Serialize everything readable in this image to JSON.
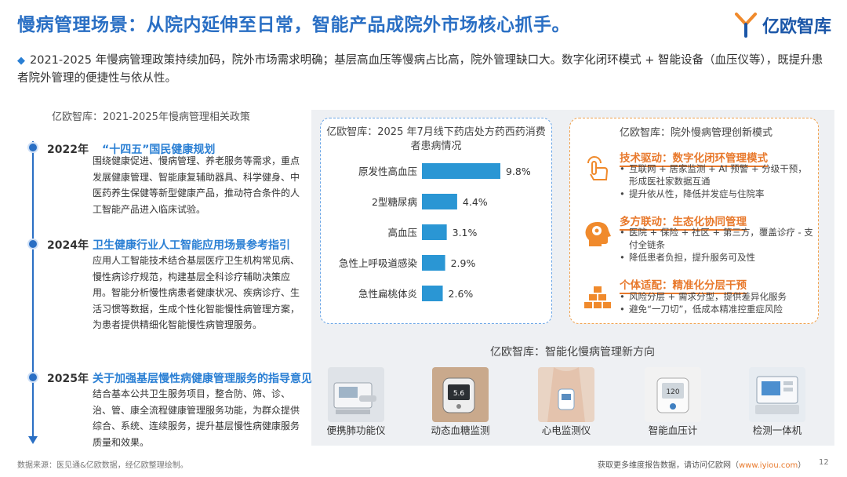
{
  "title": "慢病管理场景：从院内延伸至日常，智能产品成院外市场核心抓手。",
  "logo": {
    "text": "亿欧智库"
  },
  "intro": "2021-2025 年慢病管理政策持续加码，院外市场需求明确；基层高血压等慢病占比高，院外管理缺口大。数字化闭环模式 + 智能设备（血压仪等），既提升患者院外管理的便捷性与依从性。",
  "policy": {
    "heading": "亿欧智库：2021-2025年慢病管理相关政策",
    "items": [
      {
        "year": "2022年",
        "title": "“十四五”国民健康规划",
        "body": "围绕健康促进、慢病管理、养老服务等需求，重点发展健康管理、智能康复辅助器具、科学健身、中医药养生保健等新型健康产品，推动符合条件的人工智能产品进入临床试验。"
      },
      {
        "year": "2024年",
        "title": "卫生健康行业人工智能应用场景参考指引",
        "body": "应用人工智能技术结合基层医疗卫生机构常见病、慢性病诊疗规范，构建基层全科诊疗辅助决策应用。智能分析慢性病患者健康状况、疾病诊疗、生活习惯等数据，生成个性化智能慢性病管理方案，为患者提供精细化智能慢性病管理服务。"
      },
      {
        "year": "2025年",
        "title": "关于加强基层慢性病健康管理服务的指导意见",
        "body": "结合基本公共卫生服务项目，整合防、筛、诊、治、管、康全流程健康管理服务功能，为群众提供综合、系统、连续服务，提升基层慢性病健康服务质量和效果。"
      }
    ]
  },
  "chart_data": {
    "type": "bar",
    "title": "亿欧智库：2025 年7月线下药店处方药西药消费者患病情况",
    "categories": [
      "原发性高血压",
      "2型糖尿病",
      "高血压",
      "急性上呼吸道感染",
      "急性扁桃体炎"
    ],
    "values": [
      9.8,
      4.4,
      3.1,
      2.9,
      2.6
    ],
    "value_labels": [
      "9.8%",
      "4.4%",
      "3.1%",
      "2.9%",
      "2.6%"
    ],
    "orientation": "horizontal",
    "bar_color": "#2a96d4"
  },
  "innovation": {
    "heading": "亿欧智库：院外慢病管理创新模式",
    "items": [
      {
        "title": "技术驱动：数字化闭环管理模式",
        "icon": "touch-hand-icon",
        "points": [
          "互联网 + 居家监测 + AI 预警 + 分级干预，形成医社家数据互通",
          "提升依从性，降低并发症与住院率"
        ]
      },
      {
        "title": "多方联动：生态化协同管理",
        "icon": "brain-head-icon",
        "points": [
          "医院 + 保险 + 社区 + 第三方，覆盖诊疗 - 支付全链条",
          "降低患者负担，提升服务可及性"
        ]
      },
      {
        "title": "个体适配：精准化分层干预",
        "icon": "stacked-blocks-icon",
        "points": [
          "风险分层 + 需求分型，提供差异化服务",
          "避免“一刀切”，低成本精准控重症风险"
        ]
      }
    ]
  },
  "devices": {
    "heading": "亿欧智库：智能化慢病管理新方向",
    "items": [
      {
        "label": "便携肺功能仪"
      },
      {
        "label": "动态血糖监测"
      },
      {
        "label": "心电监测仪"
      },
      {
        "label": "智能血压计"
      },
      {
        "label": "检测一体机"
      }
    ]
  },
  "footer": {
    "source": "数据来源：医见通&亿欧数据，经亿欧整理绘制。",
    "contact_prefix": "获取更多维度报告数据，请访问亿欧网（",
    "contact_link": "www.iyiou.com",
    "contact_suffix": "）",
    "page": "12"
  },
  "colors": {
    "title": "#2a6fc4",
    "accent_orange": "#e8792c",
    "bar": "#2a96d4"
  }
}
